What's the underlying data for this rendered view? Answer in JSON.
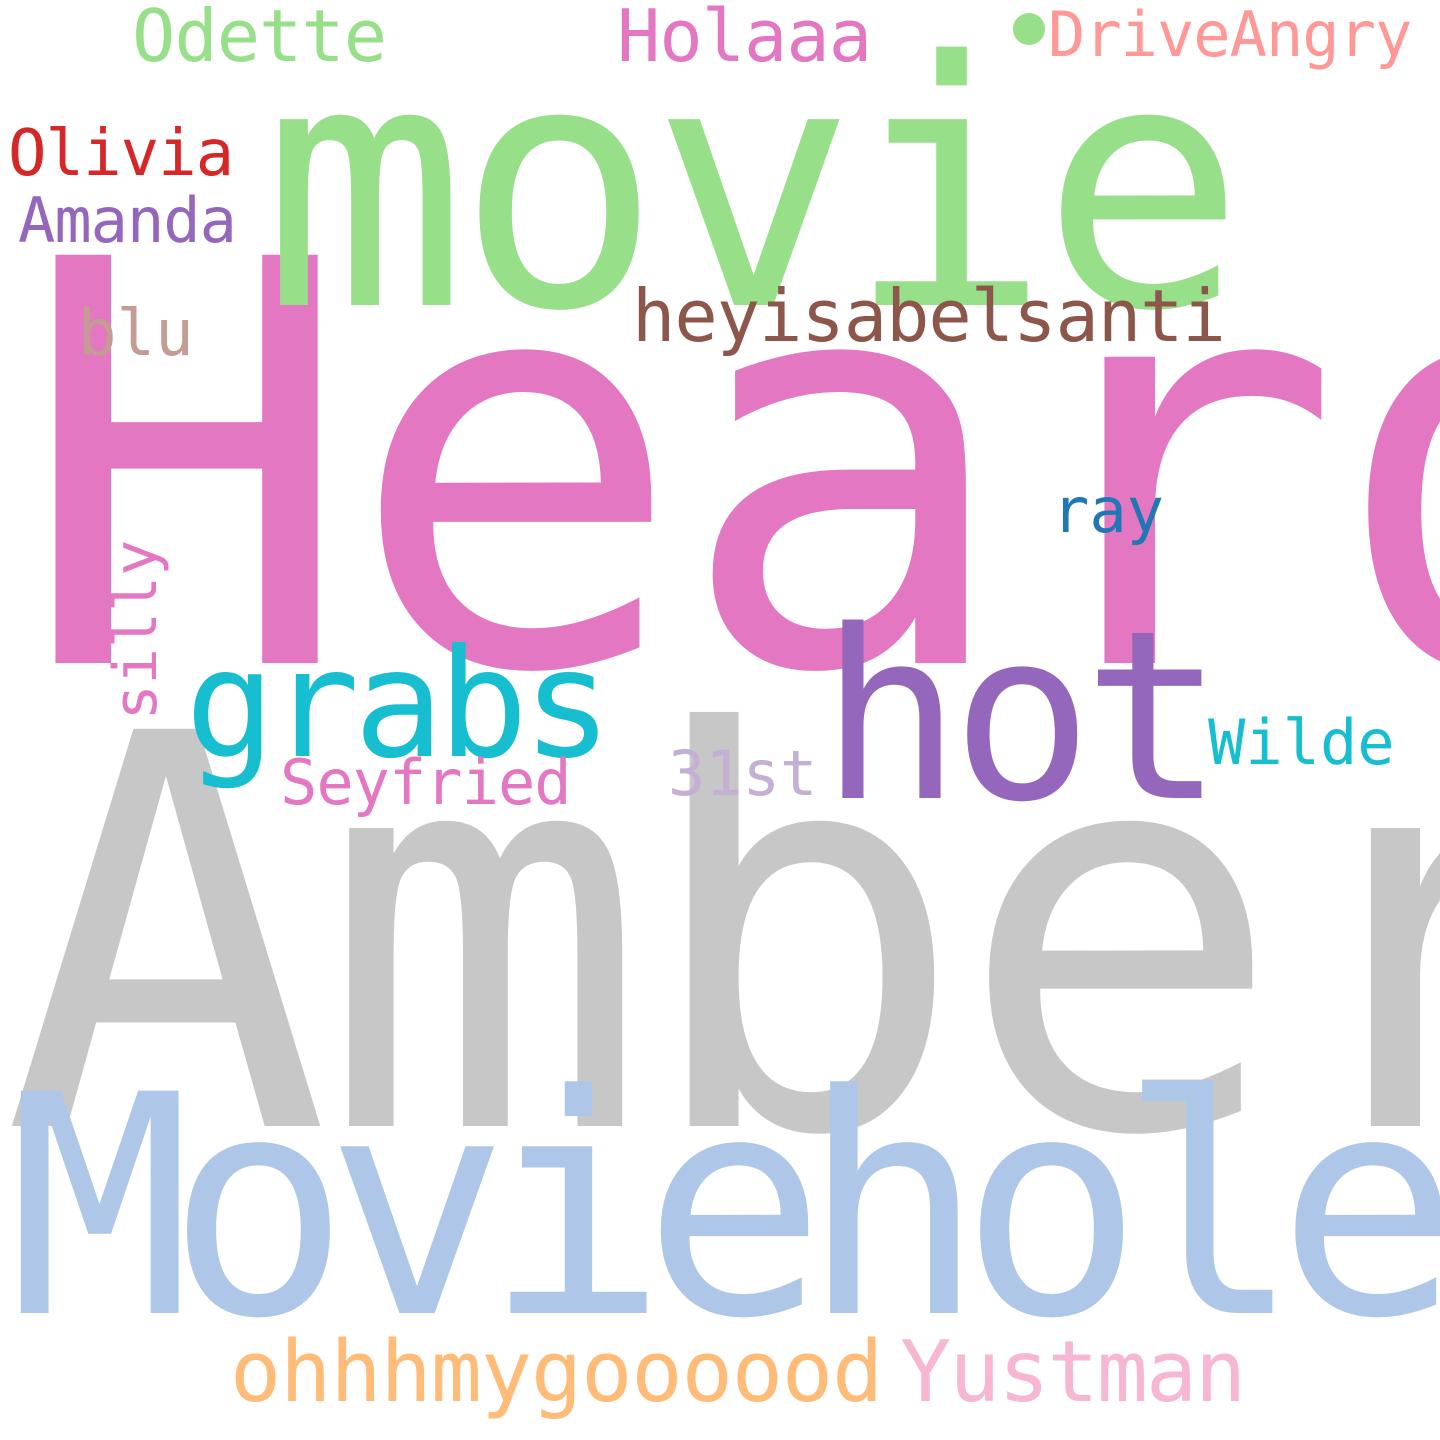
{
  "background_color": "#ffffff",
  "words": [
    {
      "text": "Heard",
      "color": "#e377c2"
    },
    {
      "text": "Amber",
      "color": "#c7c7c7"
    },
    {
      "text": "movie",
      "color": "#98df8a"
    },
    {
      "text": "Moviehole",
      "color": "#aec7e8"
    },
    {
      "text": "hot",
      "color": "#9467bd"
    },
    {
      "text": "grabs",
      "color": "#17becf"
    },
    {
      "text": "ohhhmygoooood",
      "color": "#ffbb78"
    },
    {
      "text": "Yustman",
      "color": "#f7b6d2"
    },
    {
      "text": "heyisabelsanti",
      "color": "#8c564b"
    },
    {
      "text": "Odette",
      "color": "#98df8a"
    },
    {
      "text": "Holaaa",
      "color": "#e377c2"
    },
    {
      "text": "DriveAngry",
      "color": "#ff9896"
    },
    {
      "text": "Olivia",
      "color": "#d62728"
    },
    {
      "text": "Amanda",
      "color": "#9467bd"
    },
    {
      "text": "blu",
      "color": "#c49c94"
    },
    {
      "text": "ray",
      "color": "#1f77b4"
    },
    {
      "text": "silly",
      "color": "#e377c2"
    },
    {
      "text": "Seyfried",
      "color": "#e377c2"
    },
    {
      "text": "31st",
      "color": "#c5b0d5"
    },
    {
      "text": "Wilde",
      "color": "#17becf"
    }
  ],
  "dot": {
    "color": "#98df8a"
  }
}
